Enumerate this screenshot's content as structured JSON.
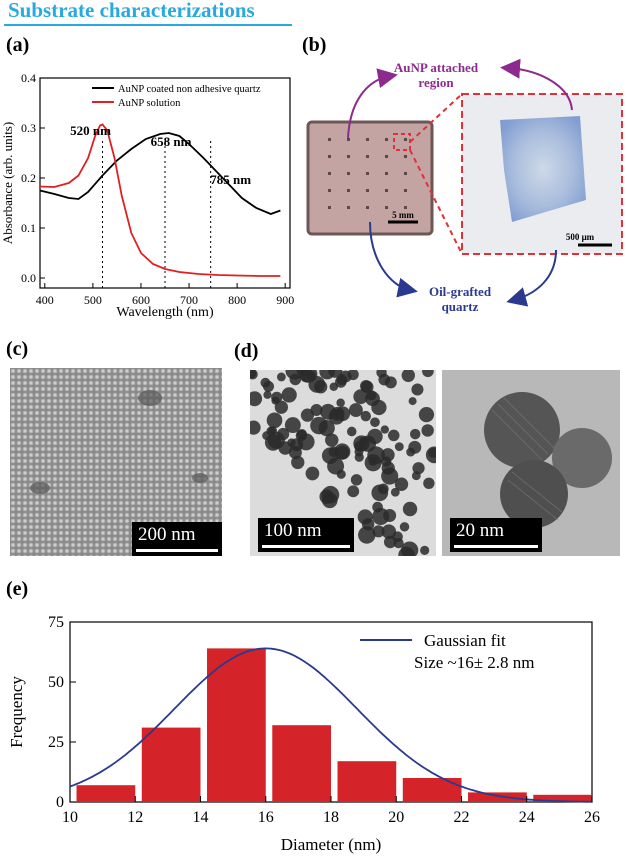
{
  "heading": "Substrate characterizations",
  "panels": {
    "a": {
      "label": "(a)"
    },
    "b": {
      "label": "(b)",
      "top_text": "AuNP attached\nregion",
      "bottom_text": "Oil-grafted\nquartz",
      "scale_small": "5 mm",
      "scale_large": "500 μm",
      "colors": {
        "top_arrow": "#8e2a8e",
        "bottom_arrow": "#2b3a8f",
        "box": "#e0303a"
      }
    },
    "c": {
      "label": "(c)",
      "scale": "200 nm"
    },
    "d": {
      "label": "(d)",
      "scale_left": "100 nm",
      "scale_right": "20 nm"
    },
    "e": {
      "label": "(e)"
    }
  },
  "chart_data": [
    {
      "type": "line",
      "xlabel": "Wavelength (nm)",
      "ylabel": "Absorbance (arb. units)",
      "xlim": [
        390,
        910
      ],
      "ylim": [
        -0.02,
        0.4
      ],
      "xticks": [
        400,
        500,
        600,
        700,
        800,
        900
      ],
      "yticks": [
        0.0,
        0.1,
        0.2,
        0.3,
        0.4
      ],
      "legend_position": "top-right",
      "series": [
        {
          "name": "AuNP coated non adhesive quartz",
          "color": "#000000",
          "x": [
            390,
            420,
            450,
            470,
            490,
            520,
            550,
            580,
            610,
            640,
            658,
            680,
            700,
            730,
            760,
            785,
            810,
            840,
            870,
            890
          ],
          "y": [
            0.175,
            0.168,
            0.16,
            0.158,
            0.172,
            0.205,
            0.235,
            0.258,
            0.278,
            0.288,
            0.29,
            0.284,
            0.268,
            0.24,
            0.21,
            0.185,
            0.16,
            0.14,
            0.128,
            0.135
          ]
        },
        {
          "name": "AuNP solution",
          "color": "#e02020",
          "x": [
            390,
            420,
            450,
            470,
            490,
            505,
            515,
            520,
            530,
            545,
            560,
            580,
            600,
            625,
            650,
            680,
            720,
            760,
            800,
            850,
            890
          ],
          "y": [
            0.183,
            0.182,
            0.19,
            0.205,
            0.24,
            0.285,
            0.305,
            0.307,
            0.295,
            0.24,
            0.165,
            0.09,
            0.05,
            0.028,
            0.018,
            0.012,
            0.008,
            0.006,
            0.005,
            0.004,
            0.004
          ]
        }
      ],
      "annotations": [
        {
          "text": "520 nm",
          "x": 520
        },
        {
          "text": "658 nm",
          "x": 650
        },
        {
          "text": "785 nm",
          "x": 745
        }
      ]
    },
    {
      "type": "bar",
      "xlabel": "Diameter (nm)",
      "ylabel": "Frequency",
      "xlim": [
        10,
        26
      ],
      "ylim": [
        0,
        75
      ],
      "xticks": [
        10,
        12,
        14,
        16,
        18,
        20,
        22,
        24,
        26
      ],
      "yticks": [
        0,
        25,
        50,
        75
      ],
      "bar_color": "#d42329",
      "bins": [
        {
          "x0": 10.2,
          "x1": 12.0,
          "value": 7
        },
        {
          "x0": 12.2,
          "x1": 14.0,
          "value": 31
        },
        {
          "x0": 14.2,
          "x1": 16.0,
          "value": 64
        },
        {
          "x0": 16.2,
          "x1": 18.0,
          "value": 32
        },
        {
          "x0": 18.2,
          "x1": 20.0,
          "value": 17
        },
        {
          "x0": 20.2,
          "x1": 22.0,
          "value": 10
        },
        {
          "x0": 22.2,
          "x1": 24.0,
          "value": 4
        },
        {
          "x0": 24.2,
          "x1": 26.0,
          "value": 3
        }
      ],
      "fit": {
        "name": "Gaussian fit",
        "color": "#2b3a8f",
        "mean": 16,
        "sigma": 2.8,
        "peak": 64
      },
      "fit_text": "Size ~16± 2.8 nm"
    }
  ]
}
